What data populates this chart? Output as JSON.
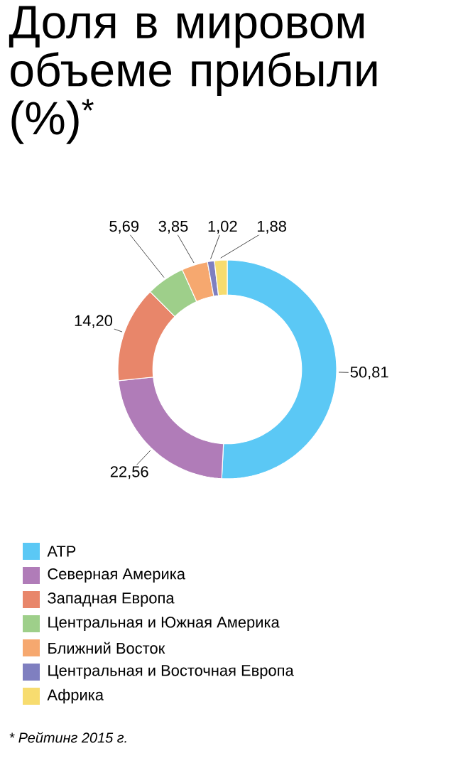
{
  "chart_data": {
    "type": "donut",
    "title": "Доля в мировом объеме прибыли (%)$^{*}$",
    "categories": [
      "АТР",
      "Северная Америка",
      "Западная Европа",
      "Центральная и Южная Америка",
      "Ближний Восток",
      "Центральная и Восточная Европа",
      "Африка"
    ],
    "values": [
      50.81,
      22.56,
      14.2,
      5.69,
      3.85,
      1.02,
      1.88
    ],
    "value_labels": [
      "50,81",
      "22,56",
      "14,20",
      "5,69",
      "3,85",
      "1,02",
      "1,88"
    ],
    "colors": [
      "#5bc8f5",
      "#b07cb8",
      "#e8866a",
      "#9ecf8a",
      "#f6a86f",
      "#7f7fc0",
      "#f7dc6f"
    ],
    "legend": "bottom",
    "annotations": [
      "* Рейтинг 2015 г."
    ]
  }
}
